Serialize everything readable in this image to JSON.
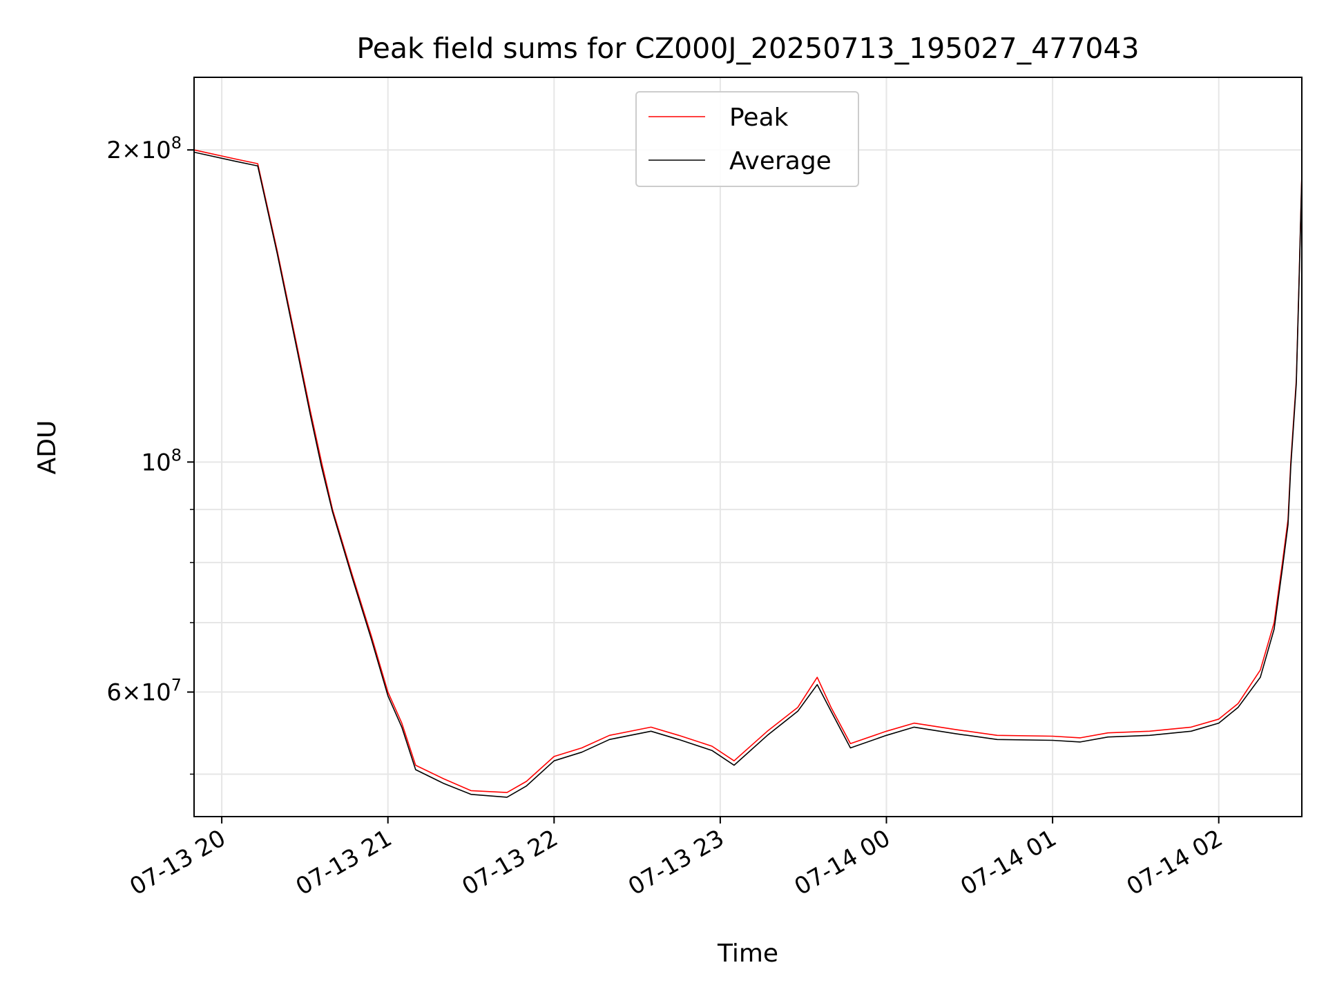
{
  "chart_data": {
    "type": "line",
    "title": "Peak field sums for CZ000J_20250713_195027_477043",
    "xlabel": "Time",
    "ylabel": "ADU",
    "x_scale": "time",
    "y_scale": "log",
    "xlim": [
      "2025-07-13 19:50",
      "2025-07-14 02:30"
    ],
    "ylim": [
      45500000,
      235000000
    ],
    "x_ticks": [
      {
        "t": "2025-07-13 20:00",
        "label": "07-13 20"
      },
      {
        "t": "2025-07-13 21:00",
        "label": "07-13 21"
      },
      {
        "t": "2025-07-13 22:00",
        "label": "07-13 22"
      },
      {
        "t": "2025-07-13 23:00",
        "label": "07-13 23"
      },
      {
        "t": "2025-07-14 00:00",
        "label": "07-14 00"
      },
      {
        "t": "2025-07-14 01:00",
        "label": "07-14 01"
      },
      {
        "t": "2025-07-14 02:00",
        "label": "07-14 02"
      }
    ],
    "y_major_ticks": [
      {
        "v": 60000000,
        "base": "6",
        "exp": "7"
      },
      {
        "v": 100000000,
        "base": "",
        "exp": "8"
      },
      {
        "v": 200000000,
        "base": "2",
        "exp": "8"
      }
    ],
    "y_minor_ticks": [
      50000000,
      70000000,
      80000000,
      90000000
    ],
    "grid": true,
    "legend_position": "upper center",
    "series": [
      {
        "name": "Peak",
        "color": "#ff0000",
        "points": [
          [
            "2025-07-13 19:50",
            200000000
          ],
          [
            "2025-07-13 20:05",
            196000000
          ],
          [
            "2025-07-13 20:13",
            194000000
          ],
          [
            "2025-07-13 20:20",
            160000000
          ],
          [
            "2025-07-13 20:27",
            130000000
          ],
          [
            "2025-07-13 20:32",
            112000000
          ],
          [
            "2025-07-13 20:36",
            100000000
          ],
          [
            "2025-07-13 20:40",
            90000000
          ],
          [
            "2025-07-13 20:47",
            78000000
          ],
          [
            "2025-07-13 20:54",
            68000000
          ],
          [
            "2025-07-13 21:00",
            60000000
          ],
          [
            "2025-07-13 21:05",
            56000000
          ],
          [
            "2025-07-13 21:10",
            51000000
          ],
          [
            "2025-07-13 21:20",
            49500000
          ],
          [
            "2025-07-13 21:30",
            48200000
          ],
          [
            "2025-07-13 21:43",
            48000000
          ],
          [
            "2025-07-13 21:50",
            49200000
          ],
          [
            "2025-07-13 22:00",
            52000000
          ],
          [
            "2025-07-13 22:10",
            53000000
          ],
          [
            "2025-07-13 22:20",
            54500000
          ],
          [
            "2025-07-13 22:35",
            55500000
          ],
          [
            "2025-07-13 22:45",
            54500000
          ],
          [
            "2025-07-13 22:57",
            53200000
          ],
          [
            "2025-07-13 23:05",
            51500000
          ],
          [
            "2025-07-13 23:17",
            55000000
          ],
          [
            "2025-07-13 23:28",
            58000000
          ],
          [
            "2025-07-13 23:35",
            62000000
          ],
          [
            "2025-07-13 23:40",
            58000000
          ],
          [
            "2025-07-13 23:47",
            53500000
          ],
          [
            "2025-07-13 24:00",
            55000000
          ],
          [
            "2025-07-14 00:10",
            56000000
          ],
          [
            "2025-07-14 00:25",
            55200000
          ],
          [
            "2025-07-14 00:40",
            54500000
          ],
          [
            "2025-07-14 01:00",
            54400000
          ],
          [
            "2025-07-14 01:10",
            54200000
          ],
          [
            "2025-07-14 01:20",
            54800000
          ],
          [
            "2025-07-14 01:35",
            55000000
          ],
          [
            "2025-07-14 01:50",
            55500000
          ],
          [
            "2025-07-14 02:00",
            56500000
          ],
          [
            "2025-07-14 02:07",
            58500000
          ],
          [
            "2025-07-14 02:15",
            63000000
          ],
          [
            "2025-07-14 02:20",
            70000000
          ],
          [
            "2025-07-14 02:23",
            80000000
          ],
          [
            "2025-07-14 02:25",
            88000000
          ],
          [
            "2025-07-14 02:26",
            100000000
          ],
          [
            "2025-07-14 02:28",
            120000000
          ],
          [
            "2025-07-14 02:29",
            150000000
          ],
          [
            "2025-07-14 02:30",
            190000000
          ]
        ]
      },
      {
        "name": "Average",
        "color": "#000000",
        "points": [
          [
            "2025-07-13 19:50",
            199000000
          ],
          [
            "2025-07-13 20:05",
            195000000
          ],
          [
            "2025-07-13 20:13",
            193000000
          ],
          [
            "2025-07-13 20:20",
            159000000
          ],
          [
            "2025-07-13 20:27",
            129000000
          ],
          [
            "2025-07-13 20:32",
            111000000
          ],
          [
            "2025-07-13 20:36",
            99000000
          ],
          [
            "2025-07-13 20:40",
            89500000
          ],
          [
            "2025-07-13 20:47",
            77500000
          ],
          [
            "2025-07-13 20:54",
            67500000
          ],
          [
            "2025-07-13 21:00",
            59500000
          ],
          [
            "2025-07-13 21:05",
            55500000
          ],
          [
            "2025-07-13 21:10",
            50500000
          ],
          [
            "2025-07-13 21:20",
            49000000
          ],
          [
            "2025-07-13 21:30",
            47800000
          ],
          [
            "2025-07-13 21:43",
            47500000
          ],
          [
            "2025-07-13 21:50",
            48700000
          ],
          [
            "2025-07-13 22:00",
            51500000
          ],
          [
            "2025-07-13 22:10",
            52500000
          ],
          [
            "2025-07-13 22:20",
            54000000
          ],
          [
            "2025-07-13 22:35",
            55000000
          ],
          [
            "2025-07-13 22:45",
            54000000
          ],
          [
            "2025-07-13 22:57",
            52700000
          ],
          [
            "2025-07-13 23:05",
            51000000
          ],
          [
            "2025-07-13 23:17",
            54500000
          ],
          [
            "2025-07-13 23:28",
            57500000
          ],
          [
            "2025-07-13 23:35",
            61000000
          ],
          [
            "2025-07-13 23:40",
            57500000
          ],
          [
            "2025-07-13 23:47",
            53000000
          ],
          [
            "2025-07-13 24:00",
            54500000
          ],
          [
            "2025-07-14 00:10",
            55500000
          ],
          [
            "2025-07-14 00:25",
            54700000
          ],
          [
            "2025-07-14 00:40",
            54000000
          ],
          [
            "2025-07-14 01:00",
            53900000
          ],
          [
            "2025-07-14 01:10",
            53700000
          ],
          [
            "2025-07-14 01:20",
            54300000
          ],
          [
            "2025-07-14 01:35",
            54500000
          ],
          [
            "2025-07-14 01:50",
            55000000
          ],
          [
            "2025-07-14 02:00",
            56000000
          ],
          [
            "2025-07-14 02:07",
            58000000
          ],
          [
            "2025-07-14 02:15",
            62000000
          ],
          [
            "2025-07-14 02:20",
            69000000
          ],
          [
            "2025-07-14 02:23",
            79000000
          ],
          [
            "2025-07-14 02:25",
            87000000
          ],
          [
            "2025-07-14 02:26",
            99000000
          ],
          [
            "2025-07-14 02:28",
            119000000
          ],
          [
            "2025-07-14 02:29",
            149000000
          ],
          [
            "2025-07-14 02:30",
            189000000
          ]
        ]
      }
    ]
  }
}
